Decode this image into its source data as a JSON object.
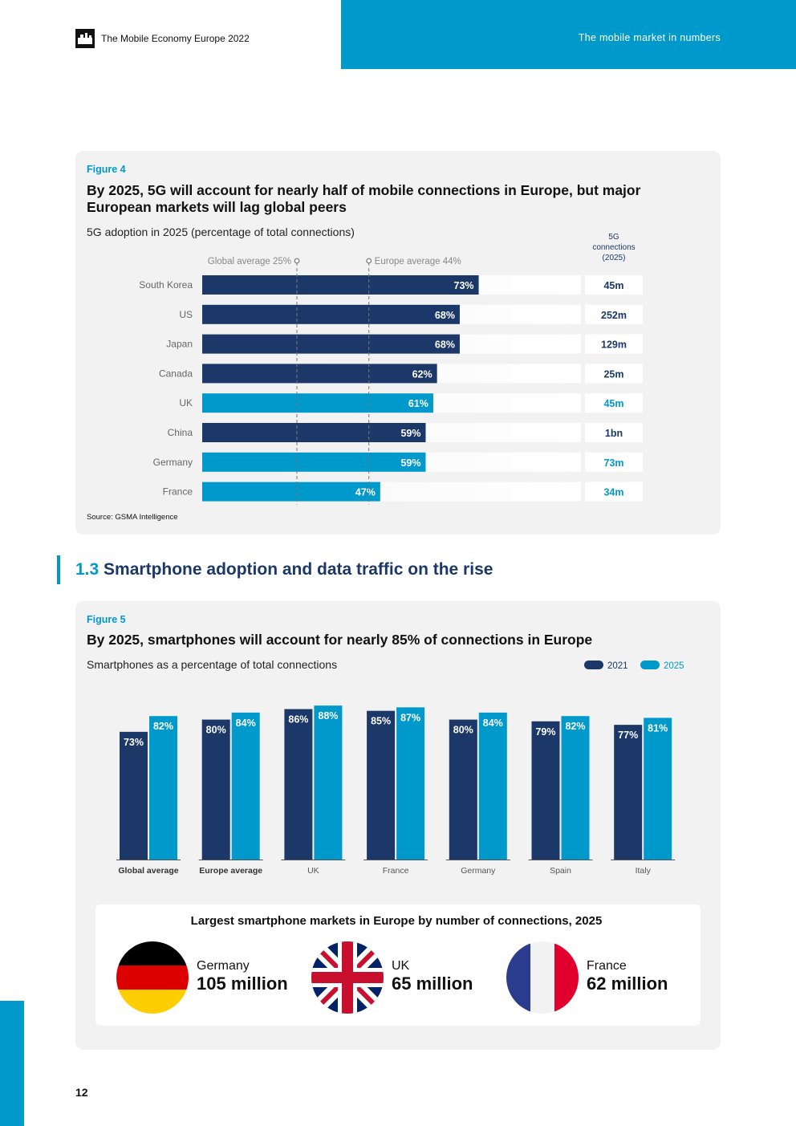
{
  "header": {
    "report_title": "The Mobile Economy Europe 2022",
    "section_title": "The mobile market in numbers"
  },
  "figure4": {
    "label": "Figure 4",
    "title": "By 2025, 5G will account for nearly half of mobile connections in Europe, but major European markets will lag global peers",
    "subtitle": "5G adoption in 2025 (percentage of total connections)",
    "connections_header": [
      "5G",
      "connections",
      "(2025)"
    ],
    "source": "Source: GSMA Intelligence"
  },
  "section": {
    "number": "1.3",
    "title": "Smartphone adoption and data traffic on the rise"
  },
  "figure5": {
    "label": "Figure 5",
    "title": "By 2025, smartphones will account for nearly 85% of connections in Europe",
    "subtitle": "Smartphones as a percentage of total connections"
  },
  "markets": {
    "title": "Largest smartphone markets in Europe by number of connections, 2025",
    "items": [
      {
        "country": "Germany",
        "value": "105 million",
        "flag": "germany-flag-icon"
      },
      {
        "country": "UK",
        "value": "65 million",
        "flag": "uk-flag-icon"
      },
      {
        "country": "France",
        "value": "62 million",
        "flag": "france-flag-icon"
      }
    ]
  },
  "page_number": "12",
  "colors": {
    "navy": "#1b3869",
    "blue": "#0099cc",
    "panel_bg": "#f2f2f2"
  },
  "chart_data": [
    {
      "type": "bar",
      "orientation": "horizontal",
      "categories": [
        "South Korea",
        "US",
        "Japan",
        "Canada",
        "UK",
        "China",
        "Germany",
        "France"
      ],
      "values": [
        73,
        68,
        68,
        62,
        61,
        59,
        59,
        47
      ],
      "value_labels": [
        "73%",
        "68%",
        "68%",
        "62%",
        "61%",
        "59%",
        "59%",
        "47%"
      ],
      "highlight": [
        false,
        false,
        false,
        false,
        true,
        false,
        true,
        true
      ],
      "xlim": [
        0,
        100
      ],
      "reference_lines": [
        {
          "label": "Global average 25%",
          "value": 25
        },
        {
          "label": "Europe average 44%",
          "value": 44
        }
      ],
      "connections": [
        "45m",
        "252m",
        "129m",
        "25m",
        "45m",
        "1bn",
        "73m",
        "34m"
      ]
    },
    {
      "type": "bar",
      "categories": [
        "Global average",
        "Europe average",
        "UK",
        "France",
        "Germany",
        "Spain",
        "Italy"
      ],
      "bold_categories": [
        true,
        true,
        false,
        false,
        false,
        false,
        false
      ],
      "series": [
        {
          "name": "2021",
          "values": [
            73,
            80,
            86,
            85,
            80,
            79,
            77
          ],
          "labels": [
            "73%",
            "80%",
            "86%",
            "85%",
            "80%",
            "79%",
            "77%"
          ]
        },
        {
          "name": "2025",
          "values": [
            82,
            84,
            88,
            87,
            84,
            82,
            81
          ],
          "labels": [
            "82%",
            "84%",
            "88%",
            "87%",
            "84%",
            "82%",
            "81%"
          ]
        }
      ],
      "ylim": [
        0,
        100
      ],
      "legend": "top-right"
    }
  ]
}
